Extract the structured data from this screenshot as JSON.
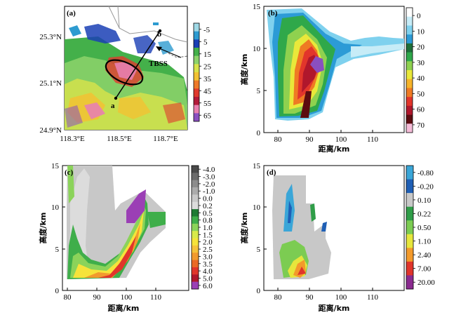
{
  "panels": {
    "a": {
      "label": "(a)",
      "lat_ticks": [
        "25.3°N",
        "25.1°N",
        "24.9°N"
      ],
      "lon_ticks": [
        "118.3°E",
        "118.5°E",
        "118.7°E"
      ],
      "point_a": "a",
      "point_b": "b",
      "annotation": "TBSS",
      "colorbar": {
        "labels": [
          "-5",
          "5",
          "15",
          "25",
          "35",
          "45",
          "55",
          "65"
        ],
        "colors": [
          "#9fd9e6",
          "#2d9bd0",
          "#1a3fb5",
          "#44b04a",
          "#8dd36b",
          "#d9e34a",
          "#f2c232",
          "#ee7a2a",
          "#e03a2e",
          "#b31a3a",
          "#e87fb0",
          "#8a4fc0"
        ]
      }
    },
    "b": {
      "label": "(b)",
      "x_ticks": [
        "80",
        "90",
        "100",
        "110"
      ],
      "y_ticks": [
        "0",
        "5",
        "10",
        "15"
      ],
      "xlabel": "距离/km",
      "ylabel": "高度/km",
      "colorbar": {
        "labels": [
          "0",
          "10",
          "20",
          "30",
          "40",
          "50",
          "60",
          "70"
        ],
        "colors": [
          "#ffffff",
          "#c7ecf7",
          "#7fd1ee",
          "#2c9bd6",
          "#1e6f3a",
          "#2fa84a",
          "#8fd14f",
          "#e9e83a",
          "#f6b42a",
          "#ef7a23",
          "#e2352b",
          "#b0172c",
          "#5c0c10",
          "#f5bcd8"
        ]
      }
    },
    "c": {
      "label": "(c)",
      "x_ticks": [
        "80",
        "90",
        "100",
        "110"
      ],
      "y_ticks": [
        "0",
        "5",
        "10",
        "15"
      ],
      "xlabel": "距离/km",
      "ylabel": "高度/km",
      "colorbar": {
        "labels": [
          "-4.0",
          "-3.0",
          "-2.0",
          "-1.0",
          "0.0",
          "0.2",
          "0.5",
          "0.8",
          "1.0",
          "1.5",
          "2.0",
          "2.5",
          "3.0",
          "3.5",
          "4.0",
          "5.0",
          "6.0"
        ],
        "colors": [
          "#4a4a4a",
          "#6b6b6b",
          "#8c8c8c",
          "#ababab",
          "#c8c8c8",
          "#dcdcdc",
          "#1e7a33",
          "#3fae4a",
          "#8bd35a",
          "#d8ea4a",
          "#f6e33a",
          "#f6c23a",
          "#f29a2e",
          "#ea6a26",
          "#e0352b",
          "#b0172c",
          "#9b3fb5"
        ]
      }
    },
    "d": {
      "label": "(d)",
      "x_ticks": [
        "80",
        "90",
        "100",
        "110"
      ],
      "y_ticks": [
        "0",
        "5",
        "10",
        "15"
      ],
      "xlabel": "距离/km",
      "ylabel": "高度/km",
      "colorbar": {
        "labels": [
          "-0.80",
          "-0.20",
          "0.10",
          "0.22",
          "0.50",
          "1.10",
          "2.40",
          "7.00",
          "20.00"
        ],
        "colors": [
          "#3aa6d8",
          "#1f5fb5",
          "#c8c8c8",
          "#2f9d48",
          "#7ccc52",
          "#e6e63c",
          "#f39a2b",
          "#e0352b",
          "#8a2a8f"
        ]
      }
    }
  }
}
